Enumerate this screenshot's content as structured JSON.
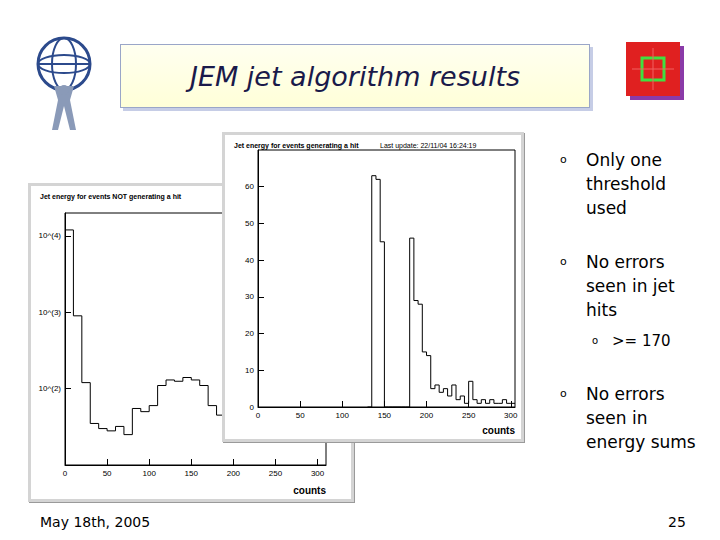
{
  "slide": {
    "title": "JEM jet algorithm results",
    "bullets": [
      {
        "text": "Only one threshold used"
      },
      {
        "text": "No errors seen in jet hits",
        "sub": [
          ">= 170"
        ]
      },
      {
        "text": "No errors seen in energy sums"
      }
    ],
    "footer": "May 18th, 2005",
    "page": "25"
  },
  "chart_data": [
    {
      "type": "histogram",
      "title": "Jet energy for events NOT generating a hit",
      "x_label": "counts",
      "bins": [
        0,
        10,
        20,
        30,
        40,
        50,
        60,
        70,
        80,
        90,
        100,
        110,
        120,
        130,
        140,
        150,
        160,
        170,
        180,
        190
      ],
      "counts": [
        12000,
        900,
        120,
        35,
        30,
        28,
        32,
        25,
        55,
        50,
        60,
        110,
        130,
        125,
        140,
        130,
        110,
        60,
        45
      ],
      "color": "#000000",
      "log": "y",
      "grid": false,
      "xlim": [
        0,
        310
      ],
      "xticks": [
        0,
        50,
        100,
        150,
        200,
        250,
        300
      ],
      "ylim": [
        10,
        20000
      ],
      "yticks": [
        {
          "value": 100,
          "label": "10^(2)"
        },
        {
          "value": 1000,
          "label": "10^(3)"
        },
        {
          "value": 10000,
          "label": "10^(4)"
        }
      ]
    },
    {
      "type": "histogram",
      "title": "Jet energy for events generating a hit",
      "subtitle": "Last update: 22/11/04 16:24:19",
      "x_label": "counts",
      "bins": [
        130,
        135,
        140,
        145,
        150,
        155,
        160,
        165,
        170,
        175,
        180,
        185,
        190,
        195,
        200,
        205,
        210,
        215,
        220,
        225,
        230,
        235,
        240,
        245,
        250,
        255,
        260,
        265,
        270,
        275,
        280,
        285,
        290,
        295,
        300,
        305
      ],
      "counts": [
        0,
        63,
        62,
        45,
        0,
        0,
        0,
        0,
        0,
        0,
        46,
        29,
        28,
        15,
        14,
        5,
        6,
        4,
        5,
        3,
        6,
        2,
        3,
        1,
        7,
        2,
        1,
        2,
        1,
        2,
        1,
        1,
        2,
        1,
        1
      ],
      "color": "#000000",
      "grid": false,
      "xlim": [
        0,
        305
      ],
      "xticks": [
        0,
        50,
        100,
        150,
        200,
        250,
        300
      ],
      "ylim": [
        0,
        70
      ],
      "yticks": [
        0,
        10,
        20,
        30,
        40,
        50,
        60
      ]
    }
  ]
}
